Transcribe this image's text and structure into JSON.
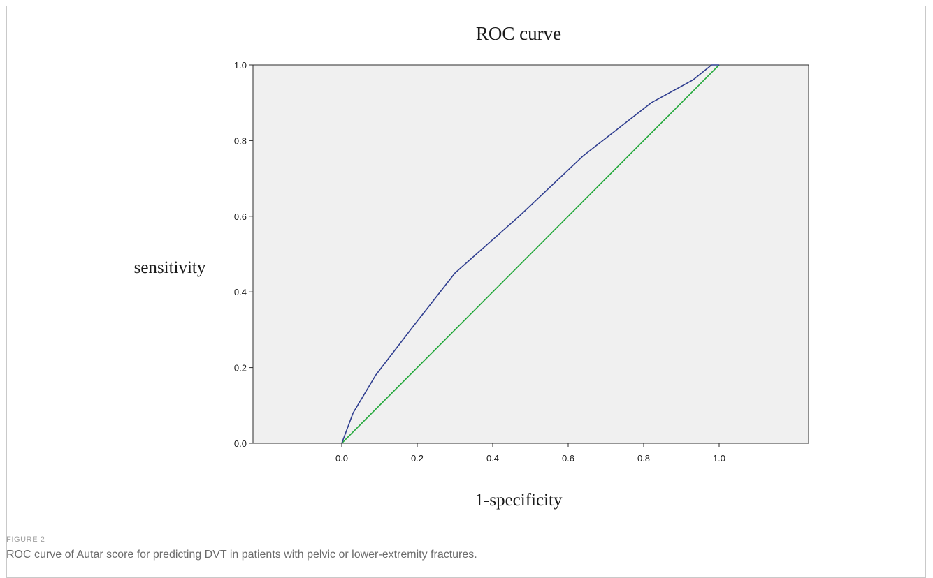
{
  "figure": {
    "label": "FIGURE 2",
    "caption": "ROC curve of Autar score for predicting DVT in patients with pelvic or lower-extremity fractures."
  },
  "chart_data": {
    "type": "line",
    "title": "ROC curve",
    "xlabel": "1-specificity",
    "ylabel": "sensitivity",
    "xlim": [
      0.0,
      1.0
    ],
    "ylim": [
      0.0,
      1.0
    ],
    "x_ticks": [
      "0.0",
      "0.2",
      "0.4",
      "0.6",
      "0.8",
      "1.0"
    ],
    "y_ticks": [
      "0.0",
      "0.2",
      "0.4",
      "0.6",
      "0.8",
      "1.0"
    ],
    "grid": false,
    "background_color": "#f0f0f0",
    "series": [
      {
        "color": "#2e3d8f",
        "x": [
          0.0,
          0.03,
          0.09,
          0.19,
          0.3,
          0.47,
          0.64,
          0.82,
          0.93,
          0.98,
          1.0
        ],
        "y": [
          0.0,
          0.08,
          0.18,
          0.31,
          0.45,
          0.6,
          0.76,
          0.9,
          0.96,
          1.0,
          1.0
        ]
      },
      {
        "color": "#22a83a",
        "x": [
          0.0,
          1.0
        ],
        "y": [
          0.0,
          1.0
        ]
      }
    ]
  }
}
